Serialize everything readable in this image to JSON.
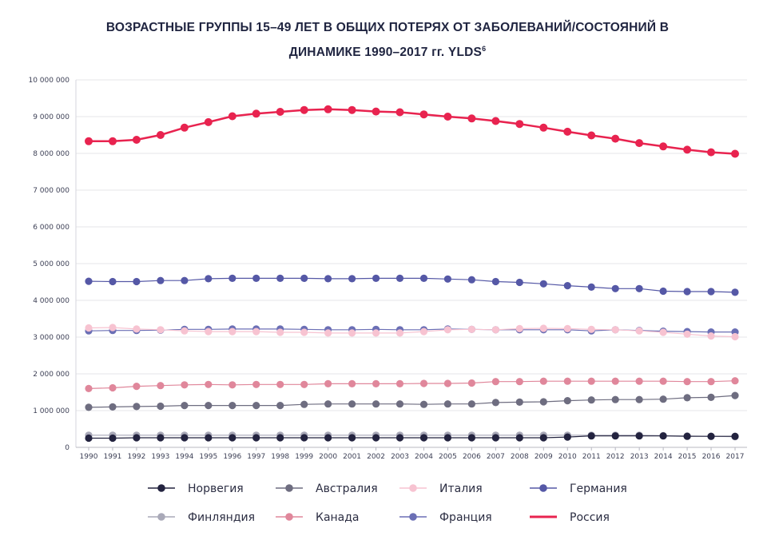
{
  "title_line1": "ВОЗРАСТНЫЕ ГРУППЫ 15–49 ЛЕТ В ОБЩИХ ПОТЕРЯХ ОТ ЗАБОЛЕВАНИЙ/СОСТОЯНИЙ В",
  "title_line2": "ДИНАМИКЕ 1990–2017 гг. YLDS",
  "title_sup": "6",
  "chart_data": {
    "type": "line",
    "title": "ВОЗРАСТНЫЕ ГРУППЫ 15–49 ЛЕТ В ОБЩИХ ПОТЕРЯХ ОТ ЗАБОЛЕВАНИЙ/СОСТОЯНИЙ В ДИНАМИКЕ 1990–2017 гг. YLDS6",
    "xlabel": "",
    "ylabel": "",
    "ylim": [
      0,
      10000000
    ],
    "yticks": [
      0,
      1000000,
      2000000,
      3000000,
      4000000,
      5000000,
      6000000,
      7000000,
      8000000,
      9000000,
      10000000
    ],
    "ytick_labels": [
      "0",
      "1 000 000",
      "2 000 000",
      "3 000 000",
      "4 000 000",
      "5 000 000",
      "6 000 000",
      "7 000 000",
      "8 000 000",
      "9 000 000",
      "10 000 000"
    ],
    "grid": true,
    "legend_position": "bottom",
    "x": [
      "1990",
      "1991",
      "1992",
      "1993",
      "1994",
      "1995",
      "1996",
      "1997",
      "1998",
      "1999",
      "2000",
      "2001",
      "2002",
      "2003",
      "2004",
      "2005",
      "2006",
      "2007",
      "2008",
      "2009",
      "2010",
      "2011",
      "2012",
      "2013",
      "2014",
      "2015",
      "2016",
      "2017"
    ],
    "series": [
      {
        "name": "Финляндия",
        "color": "#a9a9b8",
        "values": [
          330000,
          330000,
          330000,
          330000,
          330000,
          330000,
          330000,
          330000,
          330000,
          330000,
          330000,
          330000,
          330000,
          330000,
          330000,
          330000,
          330000,
          330000,
          330000,
          330000,
          330000,
          330000,
          330000,
          330000,
          320000,
          310000,
          300000,
          290000
        ]
      },
      {
        "name": "Франция",
        "color": "#6b6fb5",
        "values": [
          3170000,
          3180000,
          3180000,
          3190000,
          3210000,
          3210000,
          3220000,
          3220000,
          3220000,
          3210000,
          3200000,
          3200000,
          3210000,
          3200000,
          3200000,
          3220000,
          3210000,
          3200000,
          3200000,
          3200000,
          3200000,
          3170000,
          3200000,
          3180000,
          3160000,
          3150000,
          3140000,
          3140000
        ]
      },
      {
        "name": "Австралия",
        "color": "#6e6d80",
        "values": [
          1090000,
          1100000,
          1110000,
          1120000,
          1140000,
          1140000,
          1140000,
          1140000,
          1140000,
          1170000,
          1180000,
          1180000,
          1180000,
          1180000,
          1170000,
          1180000,
          1180000,
          1220000,
          1230000,
          1240000,
          1270000,
          1290000,
          1300000,
          1300000,
          1310000,
          1350000,
          1360000,
          1410000
        ]
      },
      {
        "name": "Канада",
        "color": "#e0879b",
        "values": [
          1600000,
          1620000,
          1660000,
          1680000,
          1700000,
          1710000,
          1700000,
          1710000,
          1710000,
          1710000,
          1730000,
          1730000,
          1730000,
          1730000,
          1740000,
          1740000,
          1750000,
          1790000,
          1790000,
          1800000,
          1800000,
          1800000,
          1800000,
          1800000,
          1800000,
          1790000,
          1790000,
          1810000
        ]
      },
      {
        "name": "Италия",
        "color": "#f7c3d1",
        "values": [
          3250000,
          3260000,
          3220000,
          3200000,
          3170000,
          3150000,
          3150000,
          3150000,
          3130000,
          3130000,
          3110000,
          3110000,
          3110000,
          3110000,
          3150000,
          3200000,
          3210000,
          3200000,
          3230000,
          3240000,
          3230000,
          3210000,
          3200000,
          3170000,
          3130000,
          3080000,
          3030000,
          3010000
        ]
      },
      {
        "name": "Норвегия",
        "color": "#23233f",
        "values": [
          250000,
          250000,
          260000,
          260000,
          260000,
          260000,
          260000,
          260000,
          260000,
          260000,
          260000,
          260000,
          260000,
          260000,
          260000,
          260000,
          260000,
          260000,
          260000,
          260000,
          280000,
          310000,
          310000,
          310000,
          310000,
          300000,
          300000,
          300000
        ]
      },
      {
        "name": "Германия",
        "color": "#5558a6",
        "values": [
          4520000,
          4510000,
          4510000,
          4540000,
          4540000,
          4590000,
          4600000,
          4600000,
          4600000,
          4600000,
          4590000,
          4590000,
          4600000,
          4600000,
          4600000,
          4580000,
          4560000,
          4510000,
          4490000,
          4450000,
          4400000,
          4360000,
          4320000,
          4320000,
          4250000,
          4240000,
          4240000,
          4220000
        ]
      },
      {
        "name": "Россия",
        "color": "#e8234f",
        "values": [
          8330000,
          8330000,
          8370000,
          8500000,
          8700000,
          8850000,
          9010000,
          9080000,
          9130000,
          9180000,
          9200000,
          9180000,
          9140000,
          9120000,
          9060000,
          9000000,
          8950000,
          8880000,
          8800000,
          8700000,
          8590000,
          8490000,
          8400000,
          8280000,
          8190000,
          8100000,
          8030000,
          7990000
        ]
      }
    ],
    "legend": [
      {
        "name": "Норвегия",
        "color": "#23233f"
      },
      {
        "name": "Австралия",
        "color": "#6e6d80"
      },
      {
        "name": "Италия",
        "color": "#f7c3d1"
      },
      {
        "name": "Германия",
        "color": "#5558a6"
      },
      {
        "name": "Финляндия",
        "color": "#a9a9b8"
      },
      {
        "name": "Канада",
        "color": "#e0879b"
      },
      {
        "name": "Франция",
        "color": "#6b6fb5"
      },
      {
        "name": "Россия",
        "color": "#e8234f"
      }
    ]
  }
}
